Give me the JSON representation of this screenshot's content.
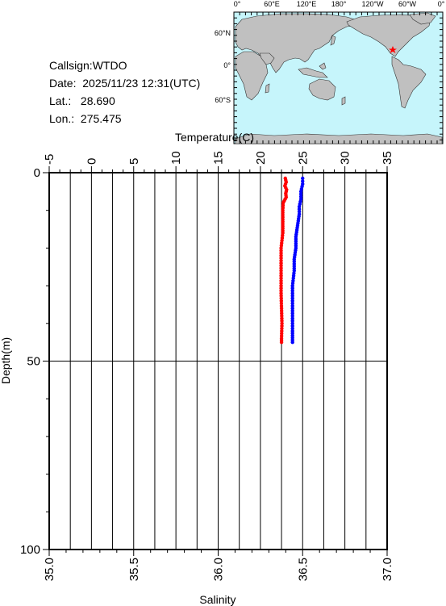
{
  "station": {
    "callsign_label": "Callsign:",
    "callsign": "WTDO",
    "date_label": "Date:",
    "date": "2025/11/23 12:31(UTC)",
    "lat_label": "Lat.:",
    "lat": "28.690",
    "lon_label": "Lon.:",
    "lon": "275.475"
  },
  "map": {
    "top_labels": [
      "0°",
      "60°E",
      "120°E",
      "180°",
      "120°W",
      "60°W",
      "0°"
    ],
    "left_labels": [
      "60°N",
      "0°",
      "60°S"
    ],
    "ocean_color": "#c6f5fb",
    "land_color": "#c0c0c0",
    "marker_color": "#ff0000"
  },
  "chart_data": {
    "type": "scatter",
    "title": "",
    "top_axis": {
      "label": "Temperature(C)",
      "range": [
        -5,
        35
      ],
      "ticks": [
        "-5",
        "0",
        "5",
        "10",
        "15",
        "20",
        "25",
        "30",
        "35"
      ]
    },
    "bottom_axis": {
      "label": "Salinity",
      "range": [
        35.0,
        37.0
      ],
      "ticks": [
        "35.0",
        "35.5",
        "36.0",
        "36.5",
        "37.0"
      ]
    },
    "y_axis": {
      "label": "Depth(m)",
      "range": [
        0,
        100
      ],
      "inverted": true,
      "ticks": [
        "0",
        "50",
        "100"
      ]
    },
    "grid": true,
    "series": [
      {
        "axis": "temperature",
        "color": "#ff0000",
        "depth": [
          1.5,
          2.5,
          3.5,
          4.5,
          5.5,
          6.5,
          8,
          10,
          13,
          16,
          20,
          24,
          28,
          32,
          36,
          40,
          44,
          45
        ],
        "values": [
          22.95,
          23.05,
          22.9,
          23.1,
          23.0,
          23.05,
          22.7,
          22.65,
          22.65,
          22.65,
          22.45,
          22.45,
          22.45,
          22.45,
          22.5,
          22.55,
          22.5,
          22.5
        ]
      },
      {
        "axis": "salinity",
        "color": "#0000ff",
        "depth": [
          1.5,
          3,
          5,
          7,
          9,
          11,
          14,
          17,
          20,
          23,
          26,
          30,
          34,
          38,
          42,
          45
        ],
        "values": [
          36.5,
          36.5,
          36.49,
          36.49,
          36.48,
          36.48,
          36.47,
          36.46,
          36.46,
          36.45,
          36.45,
          36.44,
          36.44,
          36.44,
          36.44,
          36.44
        ]
      }
    ]
  }
}
